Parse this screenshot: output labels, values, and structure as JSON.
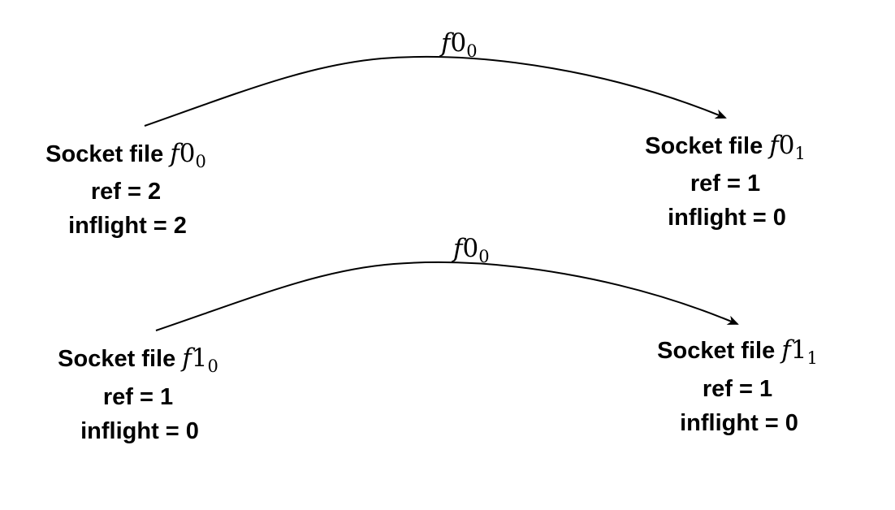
{
  "edges": [
    {
      "label": {
        "base": "f",
        "num": "0",
        "sub": "0"
      },
      "from": "f0_0",
      "to": "f0_1"
    },
    {
      "label": {
        "base": "f",
        "num": "0",
        "sub": "0"
      },
      "from": "f1_0",
      "to": "f1_1"
    }
  ],
  "nodes": [
    {
      "id": "f0_0",
      "title": "Socket file ",
      "base": "f",
      "num": "0",
      "sub": "0",
      "ref": "ref = 2",
      "inflight": "inflight = 2"
    },
    {
      "id": "f0_1",
      "title": "Socket file ",
      "base": "f",
      "num": "0",
      "sub": "1",
      "ref": "ref = 1",
      "inflight": "inflight = 0"
    },
    {
      "id": "f1_0",
      "title": "Socket file ",
      "base": "f",
      "num": "1",
      "sub": "0",
      "ref": "ref = 1",
      "inflight": "inflight = 0"
    },
    {
      "id": "f1_1",
      "title": "Socket file ",
      "base": "f",
      "num": "1",
      "sub": "1",
      "ref": "ref = 1",
      "inflight": "inflight = 0"
    }
  ],
  "colors": {
    "stroke": "#000000",
    "background": "#ffffff"
  }
}
